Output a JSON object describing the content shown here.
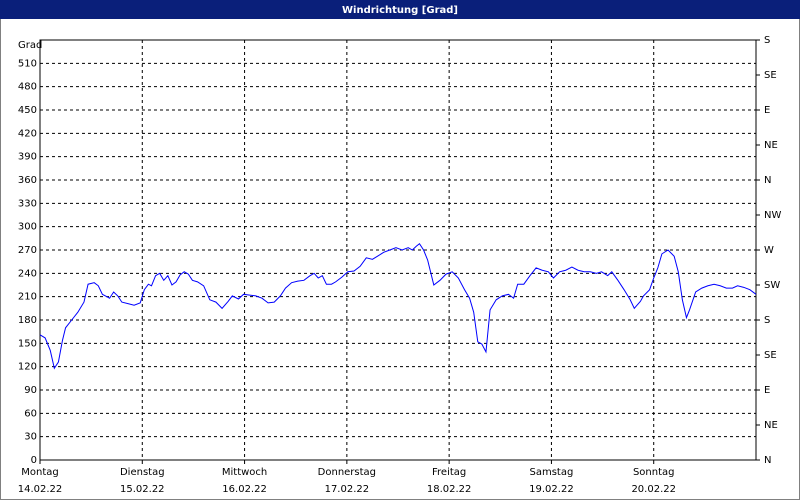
{
  "chart_data": {
    "type": "line",
    "title": "Windrichtung [Grad]",
    "ylabel": "Grad",
    "color": "#0000ff",
    "grid": true,
    "xlim": [
      0,
      7
    ],
    "ylim": [
      0,
      540
    ],
    "y2lim": [
      0,
      540
    ],
    "xticks": [
      {
        "value": 0,
        "label": "Montag"
      },
      {
        "value": 1,
        "label": "Dienstag"
      },
      {
        "value": 2,
        "label": "Mittwoch"
      },
      {
        "value": 3,
        "label": "Donnerstag"
      },
      {
        "value": 4,
        "label": "Freitag"
      },
      {
        "value": 5,
        "label": "Samstag"
      },
      {
        "value": 6,
        "label": "Sonntag"
      }
    ],
    "xtick_dates": [
      "14.02.22",
      "15.02.22",
      "16.02.22",
      "17.02.22",
      "18.02.22",
      "19.02.22",
      "20.02.22"
    ],
    "yticks": [
      0,
      30,
      60,
      90,
      120,
      150,
      180,
      210,
      240,
      270,
      300,
      330,
      360,
      390,
      420,
      450,
      480,
      510
    ],
    "y2ticks": [
      {
        "value": 540,
        "label": "S"
      },
      {
        "value": 495,
        "label": "SE"
      },
      {
        "value": 450,
        "label": "E"
      },
      {
        "value": 405,
        "label": "NE"
      },
      {
        "value": 360,
        "label": "N"
      },
      {
        "value": 315,
        "label": "NW"
      },
      {
        "value": 270,
        "label": "W"
      },
      {
        "value": 225,
        "label": "SW"
      },
      {
        "value": 180,
        "label": "S"
      },
      {
        "value": 135,
        "label": "SE"
      },
      {
        "value": 90,
        "label": "E"
      },
      {
        "value": 45,
        "label": "NE"
      },
      {
        "value": 0,
        "label": "N"
      }
    ],
    "x": [
      0,
      0.05,
      0.1,
      0.14,
      0.18,
      0.22,
      0.25,
      0.31,
      0.37,
      0.43,
      0.47,
      0.53,
      0.57,
      0.61,
      0.64,
      0.68,
      0.72,
      0.76,
      0.8,
      0.86,
      0.92,
      0.98,
      1.02,
      1.06,
      1.09,
      1.13,
      1.17,
      1.21,
      1.25,
      1.29,
      1.33,
      1.37,
      1.41,
      1.45,
      1.49,
      1.54,
      1.6,
      1.66,
      1.72,
      1.78,
      1.84,
      1.88,
      1.94,
      1.99,
      2.05,
      2.11,
      2.17,
      2.23,
      2.29,
      2.35,
      2.4,
      2.46,
      2.52,
      2.58,
      2.64,
      2.68,
      2.72,
      2.76,
      2.8,
      2.85,
      2.89,
      2.95,
      3.01,
      3.07,
      3.13,
      3.19,
      3.25,
      3.3,
      3.36,
      3.42,
      3.48,
      3.54,
      3.6,
      3.64,
      3.68,
      3.71,
      3.75,
      3.79,
      3.85,
      3.91,
      3.97,
      4.03,
      4.09,
      4.15,
      4.2,
      4.24,
      4.28,
      4.32,
      4.36,
      4.4,
      4.46,
      4.52,
      4.58,
      4.63,
      4.67,
      4.73,
      4.79,
      4.85,
      4.91,
      4.97,
      5.02,
      5.08,
      5.14,
      5.2,
      5.26,
      5.32,
      5.38,
      5.44,
      5.49,
      5.55,
      5.59,
      5.65,
      5.71,
      5.77,
      5.81,
      5.87,
      5.9,
      5.96,
      6.0,
      6.04,
      6.08,
      6.14,
      6.2,
      6.24,
      6.28,
      6.32,
      6.35,
      6.41,
      6.47,
      6.53,
      6.59,
      6.65,
      6.71,
      6.77,
      6.82,
      6.88,
      6.94,
      7.0
    ],
    "values": [
      161,
      157,
      141,
      118,
      126,
      154,
      170,
      180,
      190,
      203,
      226,
      228,
      224,
      213,
      211,
      208,
      216,
      211,
      203,
      201,
      199,
      202,
      219,
      226,
      224,
      237,
      240,
      231,
      237,
      225,
      229,
      238,
      242,
      239,
      231,
      229,
      224,
      206,
      203,
      195,
      204,
      211,
      207,
      213,
      212,
      211,
      208,
      202,
      203,
      211,
      221,
      228,
      230,
      231,
      237,
      240,
      234,
      237,
      226,
      226,
      229,
      235,
      242,
      243,
      249,
      260,
      258,
      262,
      267,
      270,
      273,
      270,
      273,
      270,
      275,
      278,
      270,
      257,
      225,
      231,
      239,
      242,
      234,
      219,
      208,
      190,
      152,
      149,
      139,
      193,
      206,
      211,
      213,
      208,
      226,
      226,
      237,
      247,
      244,
      242,
      234,
      242,
      244,
      248,
      244,
      242,
      242,
      240,
      242,
      237,
      242,
      231,
      219,
      206,
      195,
      204,
      211,
      219,
      234,
      247,
      265,
      270,
      262,
      242,
      206,
      183,
      193,
      216,
      221,
      224,
      226,
      224,
      221,
      221,
      224,
      222,
      219,
      213
    ]
  }
}
